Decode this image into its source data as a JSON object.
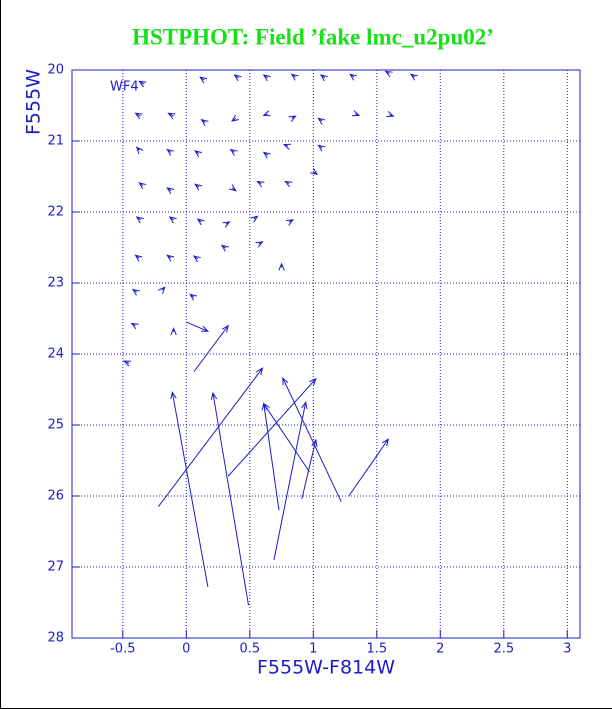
{
  "chart_data": {
    "type": "vector",
    "title": "HSTPHOT: Field ’fake lmc_u2pu02’",
    "annotation": "WF4",
    "x_label": "F555W-F814W",
    "y_label": "F555W",
    "xlim": [
      -0.9,
      3.1
    ],
    "ylim": [
      20,
      28
    ],
    "y_inverted": true,
    "xticks": [
      -0.5,
      0,
      0.5,
      1,
      1.5,
      2,
      2.5,
      3
    ],
    "yticks": [
      20,
      21,
      22,
      23,
      24,
      25,
      26,
      27,
      28
    ],
    "grid": true,
    "color": "#1c1cc8",
    "title_color": "#16e016",
    "arrows": {
      "x": [
        0.17,
        0.49,
        -0.22,
        0.33,
        0.73,
        0.69,
        0.97,
        1.22,
        0.91,
        1.28,
        0.06,
        0.0,
        -0.33,
        0.14,
        0.41,
        0.64,
        0.86,
        1.09,
        1.32,
        1.6,
        1.8,
        -0.36,
        -0.1,
        0.15,
        0.39,
        0.64,
        0.83,
        1.07,
        1.33,
        1.6,
        -0.37,
        -0.12,
        0.1,
        0.38,
        0.64,
        0.8,
        1.07,
        -0.34,
        -0.12,
        0.1,
        0.36,
        0.59,
        0.81,
        1.0,
        -0.36,
        -0.1,
        0.12,
        0.31,
        0.53,
        0.81,
        -0.37,
        -0.12,
        0.09,
        0.31,
        0.57,
        0.75,
        -0.39,
        -0.19,
        0.06,
        -0.4,
        -0.1,
        -0.45
      ],
      "y": [
        27.28,
        27.54,
        26.15,
        25.72,
        26.2,
        26.9,
        25.66,
        26.08,
        26.04,
        26.0,
        24.25,
        23.55,
        20.2,
        20.14,
        20.11,
        20.11,
        20.1,
        20.11,
        20.1,
        20.05,
        20.1,
        20.65,
        20.65,
        20.74,
        20.68,
        20.62,
        20.68,
        20.72,
        20.62,
        20.63,
        21.13,
        21.16,
        21.18,
        21.16,
        21.2,
        21.07,
        21.1,
        21.63,
        21.7,
        21.65,
        21.66,
        21.6,
        21.6,
        21.43,
        22.11,
        22.11,
        22.14,
        22.17,
        22.1,
        22.14,
        22.65,
        22.65,
        22.66,
        22.51,
        22.45,
        22.78,
        23.13,
        23.1,
        23.2,
        23.6,
        23.69,
        24.13
      ],
      "x2": [
        -0.11,
        0.21,
        0.6,
        1.02,
        0.61,
        0.94,
        0.61,
        0.76,
        1.02,
        1.59,
        0.33,
        0.17,
        -0.37,
        0.11,
        0.38,
        0.61,
        0.83,
        1.06,
        1.29,
        1.57,
        1.77,
        -0.4,
        -0.14,
        0.12,
        0.36,
        0.61,
        0.86,
        1.04,
        1.36,
        1.63,
        -0.39,
        -0.15,
        0.07,
        0.35,
        0.61,
        0.77,
        1.04,
        -0.37,
        -0.15,
        0.07,
        0.39,
        0.56,
        0.78,
        1.03,
        -0.39,
        -0.13,
        0.09,
        0.34,
        0.56,
        0.84,
        -0.4,
        -0.15,
        0.06,
        0.28,
        0.6,
        0.75,
        -0.42,
        -0.17,
        0.03,
        -0.43,
        -0.1,
        -0.49
      ],
      "y2": [
        24.54,
        24.55,
        24.2,
        24.35,
        24.7,
        24.68,
        24.7,
        24.34,
        25.21,
        25.2,
        23.6,
        23.68,
        20.16,
        20.1,
        20.07,
        20.07,
        20.06,
        20.07,
        20.06,
        20.02,
        20.06,
        20.61,
        20.61,
        20.7,
        20.72,
        20.64,
        20.65,
        20.68,
        20.64,
        20.65,
        21.09,
        21.12,
        21.14,
        21.12,
        21.16,
        21.05,
        21.06,
        21.59,
        21.66,
        21.61,
        21.7,
        21.57,
        21.57,
        21.47,
        22.07,
        22.07,
        22.1,
        22.14,
        22.06,
        22.11,
        22.61,
        22.61,
        22.62,
        22.47,
        22.42,
        22.73,
        23.09,
        23.06,
        23.16,
        23.57,
        23.64,
        24.1
      ]
    }
  }
}
